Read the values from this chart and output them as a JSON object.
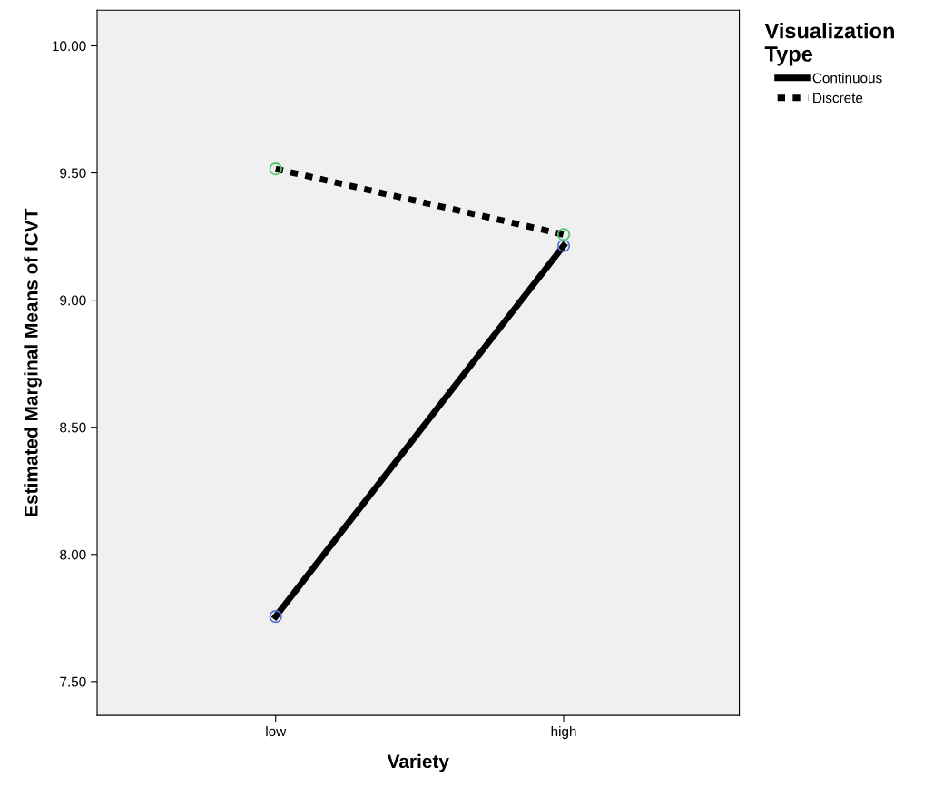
{
  "chart_data": {
    "type": "line",
    "xlabel": "Variety",
    "ylabel": "Estimated Marginal Means of ICVT",
    "legend_title": "Visualization\nType",
    "categories": [
      "low",
      "high"
    ],
    "series": [
      {
        "name": "Continuous",
        "color": "#000000",
        "colors": [
          "#5b6fcf",
          "#5b6fcf"
        ],
        "line_style": "solid",
        "values": [
          7.756,
          9.214
        ]
      },
      {
        "name": "Discrete",
        "color": "#000000",
        "colors": [
          "#4fc36b",
          "#4fc36b"
        ],
        "line_style": "dotted",
        "values": [
          9.516,
          9.258
        ]
      }
    ],
    "ylim": [
      7.367,
      10.14
    ],
    "yticks": [
      {
        "value": 7.5,
        "label": "7.50"
      },
      {
        "value": 8.0,
        "label": "8.00"
      },
      {
        "value": 8.5,
        "label": "8.50"
      },
      {
        "value": 9.0,
        "label": "9.00"
      },
      {
        "value": 9.5,
        "label": "9.50"
      },
      {
        "value": 10.0,
        "label": "10.00"
      }
    ],
    "marker": "circle",
    "grid": false,
    "legend": "top right"
  }
}
